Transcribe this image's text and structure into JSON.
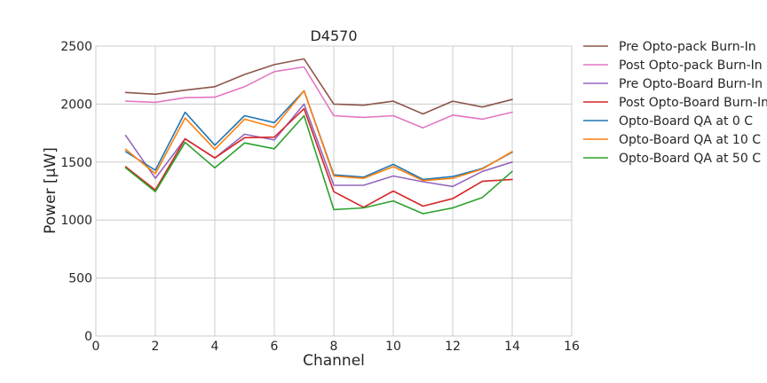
{
  "chart_data": {
    "type": "line",
    "title": "D4570",
    "xlabel": "Channel",
    "ylabel": "Power [μW]",
    "xlim": [
      0,
      16
    ],
    "ylim": [
      0,
      2500
    ],
    "xticks": [
      0,
      2,
      4,
      6,
      8,
      10,
      12,
      14,
      16
    ],
    "yticks": [
      0,
      500,
      1000,
      1500,
      2000,
      2500
    ],
    "grid": true,
    "legend_position": "outside-right",
    "x": [
      1,
      2,
      3,
      4,
      5,
      6,
      7,
      8,
      9,
      10,
      11,
      12,
      13,
      14
    ],
    "series": [
      {
        "name": "Pre Opto-pack Burn-In",
        "color": "#8c564b",
        "values": [
          2100,
          2085,
          2120,
          2150,
          2255,
          2340,
          2390,
          2000,
          1990,
          2025,
          1915,
          2025,
          1975,
          2040
        ]
      },
      {
        "name": "Post Opto-pack Burn-In",
        "color": "#e377c2",
        "values": [
          2025,
          2015,
          2055,
          2060,
          2150,
          2280,
          2320,
          1900,
          1885,
          1900,
          1795,
          1905,
          1870,
          1930
        ]
      },
      {
        "name": "Pre Opto-Board Burn-In",
        "color": "#9467bd",
        "values": [
          1730,
          1360,
          1700,
          1535,
          1740,
          1690,
          2000,
          1300,
          1300,
          1380,
          1330,
          1290,
          1420,
          1500
        ]
      },
      {
        "name": "Post Opto-Board Burn-In",
        "color": "#d62728",
        "values": [
          1460,
          1260,
          1700,
          1535,
          1710,
          1715,
          1960,
          1245,
          1110,
          1250,
          1120,
          1185,
          1335,
          1350
        ]
      },
      {
        "name": "Opto-Board QA at 0 C",
        "color": "#1f77b4",
        "values": [
          1590,
          1430,
          1930,
          1645,
          1900,
          1840,
          2115,
          1390,
          1370,
          1480,
          1350,
          1375,
          1445,
          1585
        ]
      },
      {
        "name": "Opto-Board QA at 10 C",
        "color": "#ff7f0e",
        "values": [
          1610,
          1400,
          1880,
          1610,
          1870,
          1800,
          2115,
          1380,
          1360,
          1460,
          1340,
          1360,
          1440,
          1590
        ]
      },
      {
        "name": "Opto-Board QA at 50 C",
        "color": "#2ca02c",
        "values": [
          1450,
          1245,
          1670,
          1450,
          1665,
          1615,
          1900,
          1090,
          1105,
          1165,
          1055,
          1105,
          1195,
          1420
        ]
      }
    ]
  }
}
